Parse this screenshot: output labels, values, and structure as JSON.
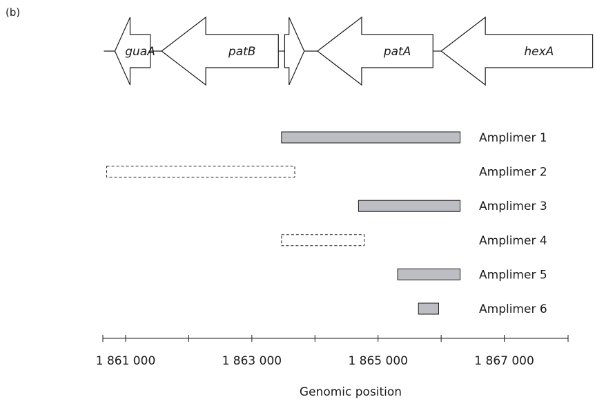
{
  "panel_label": "(b)",
  "genes": [
    {
      "name": "guaA",
      "start": 1860830,
      "end": 1861390,
      "strand": "-"
    },
    {
      "name": "patB",
      "start": 1861570,
      "end": 1863420,
      "strand": "-"
    },
    {
      "name": "",
      "start": 1863520,
      "end": 1863830,
      "strand": "+"
    },
    {
      "name": "patA",
      "start": 1864040,
      "end": 1865870,
      "strand": "-"
    },
    {
      "name": "hexA",
      "start": 1866000,
      "end": 1868400,
      "strand": "-"
    }
  ],
  "amplimers": [
    {
      "label": "Amplimer 1",
      "start": 1863470,
      "end": 1866300,
      "style": "filled"
    },
    {
      "label": "Amplimer 2",
      "start": 1860700,
      "end": 1863680,
      "style": "dashed"
    },
    {
      "label": "Amplimer 3",
      "start": 1864690,
      "end": 1866300,
      "style": "filled"
    },
    {
      "label": "Amplimer 4",
      "start": 1863470,
      "end": 1864780,
      "style": "dashed"
    },
    {
      "label": "Amplimer 5",
      "start": 1865310,
      "end": 1866300,
      "style": "filled"
    },
    {
      "label": "Amplimer 6",
      "start": 1865640,
      "end": 1865960,
      "style": "filled"
    }
  ],
  "axis": {
    "min": 1860650,
    "max": 1868000,
    "ticks": [
      1861000,
      1862000,
      1863000,
      1864000,
      1865000,
      1866000,
      1867000
    ],
    "tick_labels": [
      {
        "value": 1861000,
        "text": "1 861 000"
      },
      {
        "value": 1863000,
        "text": "1 863 000"
      },
      {
        "value": 1865000,
        "text": "1 865 000"
      },
      {
        "value": 1867000,
        "text": "1 867 000"
      }
    ],
    "label": "Genomic position"
  },
  "colors": {
    "filled": "#bdbec3",
    "stroke": "#1a1a1a",
    "text": "#1a1a1a"
  }
}
